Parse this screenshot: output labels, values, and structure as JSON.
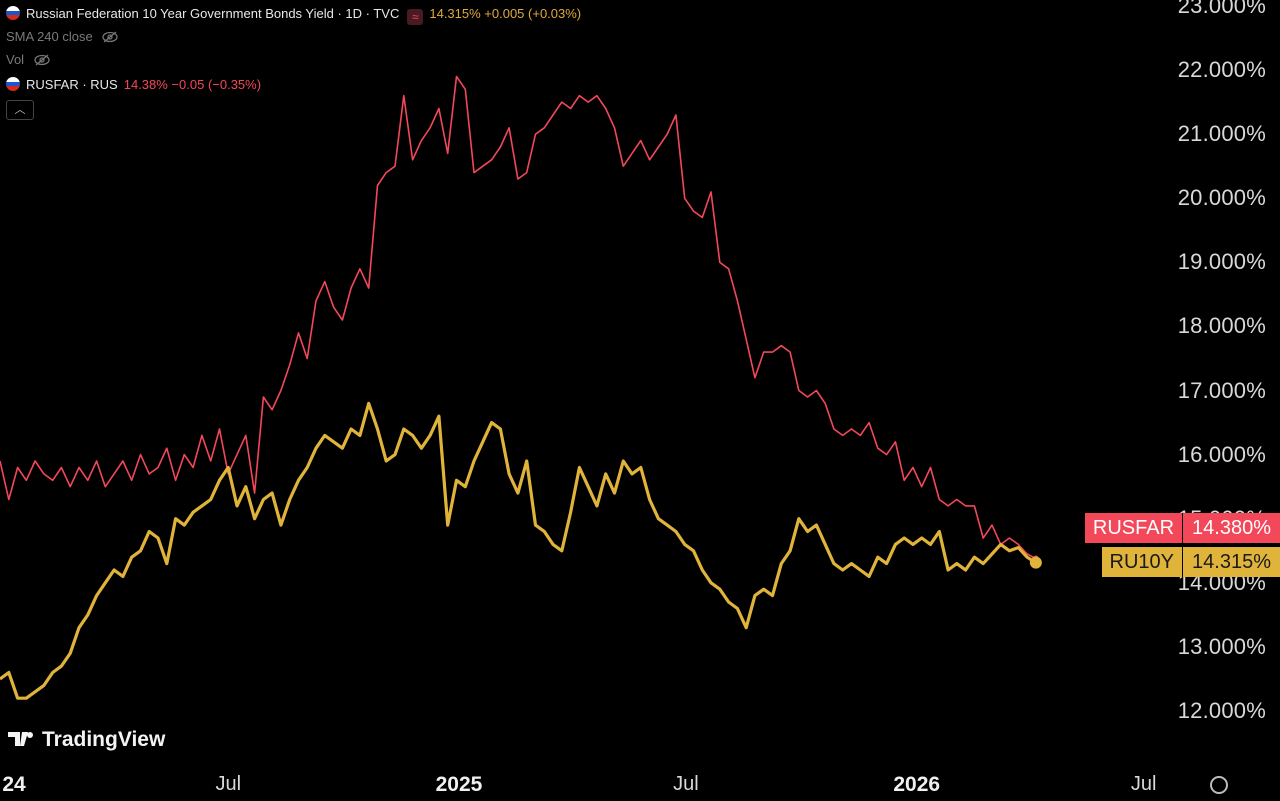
{
  "header": {
    "main_title": "Russian Federation 10 Year Government Bonds Yield · 1D · TVC",
    "main_values": "14.315%  +0.005 (+0.03%)",
    "sma_label": "SMA 240 close",
    "vol_label": "Vol",
    "compare_title": "RUSFAR · RUS",
    "compare_values": "14.38%  −0.05 (−0.35%)",
    "collapse_icon": "chevron-up-icon"
  },
  "branding": {
    "logo_text": "TradingView"
  },
  "colors": {
    "rusfar": "#f2485a",
    "ru10y": "#e0b33a",
    "background": "#000000",
    "flag_white": "#ffffff",
    "flag_blue": "#1c57c9",
    "flag_red": "#d52b1e"
  },
  "price_labels": {
    "rusfar": {
      "name": "RUSFAR",
      "value": "14.380%"
    },
    "ru10y": {
      "name": "RU10Y",
      "value": "14.315%"
    }
  },
  "chart_data": {
    "type": "line",
    "y_axis": {
      "ticks": [
        "23.000%",
        "22.000%",
        "21.000%",
        "20.000%",
        "19.000%",
        "18.000%",
        "17.000%",
        "16.000%",
        "15.000%",
        "14.000%",
        "13.000%",
        "12.000%"
      ],
      "ylim": [
        11.8,
        23.1
      ]
    },
    "x_axis": {
      "ticks": [
        {
          "label": "24",
          "date": "2024-01-01",
          "bold": true
        },
        {
          "label": "Jul",
          "date": "2024-07-01",
          "bold": false
        },
        {
          "label": "2025",
          "date": "2025-01-01",
          "bold": true
        },
        {
          "label": "Jul",
          "date": "2025-07-01",
          "bold": false
        },
        {
          "label": "2026",
          "date": "2026-01-01",
          "bold": true
        },
        {
          "label": "Jul",
          "date": "2026-07-01",
          "bold": false
        }
      ],
      "xlim": [
        "2024-01-01",
        "2026-07-14"
      ]
    },
    "series": [
      {
        "name": "RUSFAR",
        "color": "#f2485a",
        "points": [
          [
            "2024-01-01",
            15.9
          ],
          [
            "2024-01-08",
            15.3
          ],
          [
            "2024-01-15",
            15.8
          ],
          [
            "2024-01-22",
            15.6
          ],
          [
            "2024-01-29",
            15.9
          ],
          [
            "2024-02-05",
            15.7
          ],
          [
            "2024-02-12",
            15.6
          ],
          [
            "2024-02-19",
            15.8
          ],
          [
            "2024-02-26",
            15.5
          ],
          [
            "2024-03-04",
            15.8
          ],
          [
            "2024-03-11",
            15.6
          ],
          [
            "2024-03-18",
            15.9
          ],
          [
            "2024-03-25",
            15.5
          ],
          [
            "2024-04-01",
            15.7
          ],
          [
            "2024-04-08",
            15.9
          ],
          [
            "2024-04-15",
            15.6
          ],
          [
            "2024-04-22",
            16.0
          ],
          [
            "2024-04-29",
            15.7
          ],
          [
            "2024-05-06",
            15.8
          ],
          [
            "2024-05-13",
            16.1
          ],
          [
            "2024-05-20",
            15.6
          ],
          [
            "2024-05-27",
            16.0
          ],
          [
            "2024-06-03",
            15.8
          ],
          [
            "2024-06-10",
            16.3
          ],
          [
            "2024-06-17",
            15.9
          ],
          [
            "2024-06-24",
            16.4
          ],
          [
            "2024-07-01",
            15.7
          ],
          [
            "2024-07-08",
            16.0
          ],
          [
            "2024-07-15",
            16.3
          ],
          [
            "2024-07-22",
            15.4
          ],
          [
            "2024-07-29",
            16.9
          ],
          [
            "2024-08-05",
            16.7
          ],
          [
            "2024-08-12",
            17.0
          ],
          [
            "2024-08-19",
            17.4
          ],
          [
            "2024-08-26",
            17.9
          ],
          [
            "2024-09-02",
            17.5
          ],
          [
            "2024-09-09",
            18.4
          ],
          [
            "2024-09-16",
            18.7
          ],
          [
            "2024-09-23",
            18.3
          ],
          [
            "2024-09-30",
            18.1
          ],
          [
            "2024-10-07",
            18.6
          ],
          [
            "2024-10-14",
            18.9
          ],
          [
            "2024-10-21",
            18.6
          ],
          [
            "2024-10-28",
            20.2
          ],
          [
            "2024-11-04",
            20.4
          ],
          [
            "2024-11-11",
            20.5
          ],
          [
            "2024-11-18",
            21.6
          ],
          [
            "2024-11-25",
            20.6
          ],
          [
            "2024-12-02",
            20.9
          ],
          [
            "2024-12-09",
            21.1
          ],
          [
            "2024-12-16",
            21.4
          ],
          [
            "2024-12-23",
            20.7
          ],
          [
            "2024-12-30",
            21.9
          ],
          [
            "2025-01-06",
            21.7
          ],
          [
            "2025-01-13",
            20.4
          ],
          [
            "2025-01-20",
            20.5
          ],
          [
            "2025-01-27",
            20.6
          ],
          [
            "2025-02-03",
            20.8
          ],
          [
            "2025-02-10",
            21.1
          ],
          [
            "2025-02-17",
            20.3
          ],
          [
            "2025-02-24",
            20.4
          ],
          [
            "2025-03-03",
            21.0
          ],
          [
            "2025-03-10",
            21.1
          ],
          [
            "2025-03-17",
            21.3
          ],
          [
            "2025-03-24",
            21.5
          ],
          [
            "2025-03-31",
            21.4
          ],
          [
            "2025-04-07",
            21.6
          ],
          [
            "2025-04-14",
            21.5
          ],
          [
            "2025-04-21",
            21.6
          ],
          [
            "2025-04-28",
            21.4
          ],
          [
            "2025-05-05",
            21.1
          ],
          [
            "2025-05-12",
            20.5
          ],
          [
            "2025-05-19",
            20.7
          ],
          [
            "2025-05-26",
            20.9
          ],
          [
            "2025-06-02",
            20.6
          ],
          [
            "2025-06-09",
            20.8
          ],
          [
            "2025-06-16",
            21.0
          ],
          [
            "2025-06-23",
            21.3
          ],
          [
            "2025-06-30",
            20.0
          ],
          [
            "2025-07-07",
            19.8
          ],
          [
            "2025-07-14",
            19.7
          ],
          [
            "2025-07-21",
            20.1
          ],
          [
            "2025-07-28",
            19.0
          ],
          [
            "2025-08-04",
            18.9
          ],
          [
            "2025-08-11",
            18.4
          ],
          [
            "2025-08-18",
            17.8
          ],
          [
            "2025-08-25",
            17.2
          ],
          [
            "2025-09-01",
            17.6
          ],
          [
            "2025-09-08",
            17.6
          ],
          [
            "2025-09-15",
            17.7
          ],
          [
            "2025-09-22",
            17.6
          ],
          [
            "2025-09-29",
            17.0
          ],
          [
            "2025-10-06",
            16.9
          ],
          [
            "2025-10-13",
            17.0
          ],
          [
            "2025-10-20",
            16.8
          ],
          [
            "2025-10-27",
            16.4
          ],
          [
            "2025-11-03",
            16.3
          ],
          [
            "2025-11-10",
            16.4
          ],
          [
            "2025-11-17",
            16.3
          ],
          [
            "2025-11-24",
            16.5
          ],
          [
            "2025-12-01",
            16.1
          ],
          [
            "2025-12-08",
            16.0
          ],
          [
            "2025-12-15",
            16.2
          ],
          [
            "2025-12-22",
            15.6
          ],
          [
            "2025-12-29",
            15.8
          ],
          [
            "2026-01-05",
            15.5
          ],
          [
            "2026-01-12",
            15.8
          ],
          [
            "2026-01-19",
            15.3
          ],
          [
            "2026-01-26",
            15.2
          ],
          [
            "2026-02-02",
            15.3
          ],
          [
            "2026-02-09",
            15.2
          ],
          [
            "2026-02-16",
            15.2
          ],
          [
            "2026-02-23",
            14.7
          ],
          [
            "2026-03-02",
            14.9
          ],
          [
            "2026-03-09",
            14.6
          ],
          [
            "2026-03-16",
            14.7
          ],
          [
            "2026-03-23",
            14.6
          ],
          [
            "2026-03-30",
            14.45
          ],
          [
            "2026-04-06",
            14.38
          ]
        ]
      },
      {
        "name": "RU10Y",
        "color": "#e0b33a",
        "points": [
          [
            "2024-01-01",
            12.5
          ],
          [
            "2024-01-08",
            12.6
          ],
          [
            "2024-01-15",
            12.2
          ],
          [
            "2024-01-22",
            12.2
          ],
          [
            "2024-01-29",
            12.3
          ],
          [
            "2024-02-05",
            12.4
          ],
          [
            "2024-02-12",
            12.6
          ],
          [
            "2024-02-19",
            12.7
          ],
          [
            "2024-02-26",
            12.9
          ],
          [
            "2024-03-04",
            13.3
          ],
          [
            "2024-03-11",
            13.5
          ],
          [
            "2024-03-18",
            13.8
          ],
          [
            "2024-03-25",
            14.0
          ],
          [
            "2024-04-01",
            14.2
          ],
          [
            "2024-04-08",
            14.1
          ],
          [
            "2024-04-15",
            14.4
          ],
          [
            "2024-04-22",
            14.5
          ],
          [
            "2024-04-29",
            14.8
          ],
          [
            "2024-05-06",
            14.7
          ],
          [
            "2024-05-13",
            14.3
          ],
          [
            "2024-05-20",
            15.0
          ],
          [
            "2024-05-27",
            14.9
          ],
          [
            "2024-06-03",
            15.1
          ],
          [
            "2024-06-10",
            15.2
          ],
          [
            "2024-06-17",
            15.3
          ],
          [
            "2024-06-24",
            15.6
          ],
          [
            "2024-07-01",
            15.8
          ],
          [
            "2024-07-08",
            15.2
          ],
          [
            "2024-07-15",
            15.5
          ],
          [
            "2024-07-22",
            15.0
          ],
          [
            "2024-07-29",
            15.3
          ],
          [
            "2024-08-05",
            15.4
          ],
          [
            "2024-08-12",
            14.9
          ],
          [
            "2024-08-19",
            15.3
          ],
          [
            "2024-08-26",
            15.6
          ],
          [
            "2024-09-02",
            15.8
          ],
          [
            "2024-09-09",
            16.1
          ],
          [
            "2024-09-16",
            16.3
          ],
          [
            "2024-09-23",
            16.2
          ],
          [
            "2024-09-30",
            16.1
          ],
          [
            "2024-10-07",
            16.4
          ],
          [
            "2024-10-14",
            16.3
          ],
          [
            "2024-10-21",
            16.8
          ],
          [
            "2024-10-28",
            16.4
          ],
          [
            "2024-11-04",
            15.9
          ],
          [
            "2024-11-11",
            16.0
          ],
          [
            "2024-11-18",
            16.4
          ],
          [
            "2024-11-25",
            16.3
          ],
          [
            "2024-12-02",
            16.1
          ],
          [
            "2024-12-09",
            16.3
          ],
          [
            "2024-12-16",
            16.6
          ],
          [
            "2024-12-23",
            14.9
          ],
          [
            "2024-12-30",
            15.6
          ],
          [
            "2025-01-06",
            15.5
          ],
          [
            "2025-01-13",
            15.9
          ],
          [
            "2025-01-20",
            16.2
          ],
          [
            "2025-01-27",
            16.5
          ],
          [
            "2025-02-03",
            16.4
          ],
          [
            "2025-02-10",
            15.7
          ],
          [
            "2025-02-17",
            15.4
          ],
          [
            "2025-02-24",
            15.9
          ],
          [
            "2025-03-03",
            14.9
          ],
          [
            "2025-03-10",
            14.8
          ],
          [
            "2025-03-17",
            14.6
          ],
          [
            "2025-03-24",
            14.5
          ],
          [
            "2025-03-31",
            15.1
          ],
          [
            "2025-04-07",
            15.8
          ],
          [
            "2025-04-14",
            15.5
          ],
          [
            "2025-04-21",
            15.2
          ],
          [
            "2025-04-28",
            15.7
          ],
          [
            "2025-05-05",
            15.4
          ],
          [
            "2025-05-12",
            15.9
          ],
          [
            "2025-05-19",
            15.7
          ],
          [
            "2025-05-26",
            15.8
          ],
          [
            "2025-06-02",
            15.3
          ],
          [
            "2025-06-09",
            15.0
          ],
          [
            "2025-06-16",
            14.9
          ],
          [
            "2025-06-23",
            14.8
          ],
          [
            "2025-06-30",
            14.6
          ],
          [
            "2025-07-07",
            14.5
          ],
          [
            "2025-07-14",
            14.2
          ],
          [
            "2025-07-21",
            14.0
          ],
          [
            "2025-07-28",
            13.9
          ],
          [
            "2025-08-04",
            13.7
          ],
          [
            "2025-08-11",
            13.6
          ],
          [
            "2025-08-18",
            13.3
          ],
          [
            "2025-08-25",
            13.8
          ],
          [
            "2025-09-01",
            13.9
          ],
          [
            "2025-09-08",
            13.8
          ],
          [
            "2025-09-15",
            14.3
          ],
          [
            "2025-09-22",
            14.5
          ],
          [
            "2025-09-29",
            15.0
          ],
          [
            "2025-10-06",
            14.8
          ],
          [
            "2025-10-13",
            14.9
          ],
          [
            "2025-10-20",
            14.6
          ],
          [
            "2025-10-27",
            14.3
          ],
          [
            "2025-11-03",
            14.2
          ],
          [
            "2025-11-10",
            14.3
          ],
          [
            "2025-11-17",
            14.2
          ],
          [
            "2025-11-24",
            14.1
          ],
          [
            "2025-12-01",
            14.4
          ],
          [
            "2025-12-08",
            14.3
          ],
          [
            "2025-12-15",
            14.6
          ],
          [
            "2025-12-22",
            14.7
          ],
          [
            "2025-12-29",
            14.6
          ],
          [
            "2026-01-05",
            14.7
          ],
          [
            "2026-01-12",
            14.6
          ],
          [
            "2026-01-19",
            14.8
          ],
          [
            "2026-01-26",
            14.2
          ],
          [
            "2026-02-02",
            14.3
          ],
          [
            "2026-02-09",
            14.2
          ],
          [
            "2026-02-16",
            14.4
          ],
          [
            "2026-02-23",
            14.3
          ],
          [
            "2026-03-02",
            14.45
          ],
          [
            "2026-03-09",
            14.6
          ],
          [
            "2026-03-16",
            14.5
          ],
          [
            "2026-03-23",
            14.55
          ],
          [
            "2026-03-30",
            14.4
          ],
          [
            "2026-04-06",
            14.315
          ]
        ]
      }
    ],
    "grid": false,
    "legend": "top-left"
  }
}
